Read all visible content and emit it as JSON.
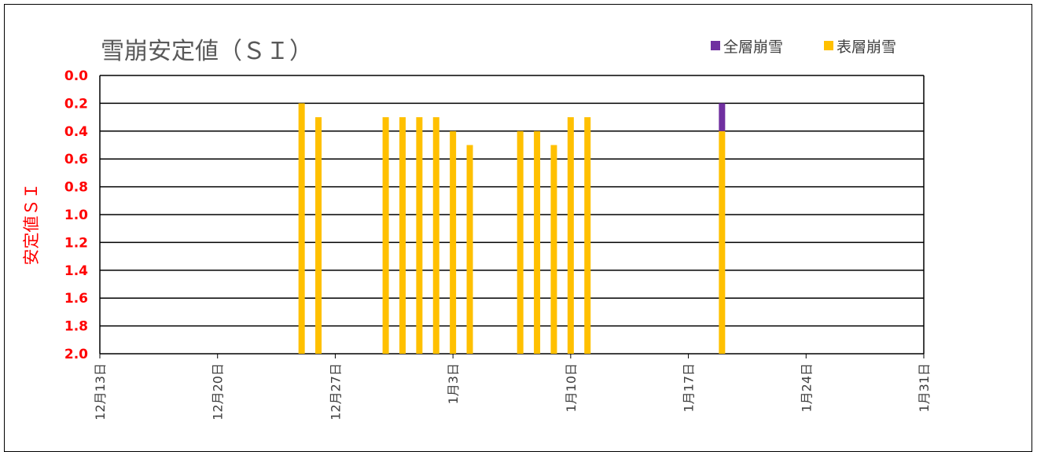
{
  "chart_data": {
    "type": "bar",
    "title": "雪崩安定値（ＳＩ）",
    "ylabel": "安定値ＳＩ",
    "xlabel": "",
    "ylim": [
      0.0,
      2.0
    ],
    "y_inverted": true,
    "y_ticks": [
      "0.0",
      "0.2",
      "0.4",
      "0.6",
      "0.8",
      "1.0",
      "1.2",
      "1.4",
      "1.6",
      "1.8",
      "2.0"
    ],
    "x_ticks": [
      "12月13日",
      "12月20日",
      "12月27日",
      "1月3日",
      "1月10日",
      "1月17日",
      "1月24日",
      "1月31日"
    ],
    "grid": true,
    "legend_position": "top-right",
    "series": [
      {
        "name": "全層崩雪",
        "color": "#7030a0",
        "points": [
          {
            "date": "1月19日",
            "value": 0.2
          }
        ]
      },
      {
        "name": "表層崩雪",
        "color": "#ffc000",
        "points": [
          {
            "date": "12月25日",
            "value": 0.2
          },
          {
            "date": "12月26日",
            "value": 0.3
          },
          {
            "date": "12月30日",
            "value": 0.3
          },
          {
            "date": "12月31日",
            "value": 0.3
          },
          {
            "date": "1月1日",
            "value": 0.3
          },
          {
            "date": "1月2日",
            "value": 0.3
          },
          {
            "date": "1月3日",
            "value": 0.4
          },
          {
            "date": "1月4日",
            "value": 0.5
          },
          {
            "date": "1月7日",
            "value": 0.4
          },
          {
            "date": "1月8日",
            "value": 0.4
          },
          {
            "date": "1月9日",
            "value": 0.5
          },
          {
            "date": "1月10日",
            "value": 0.3
          },
          {
            "date": "1月11日",
            "value": 0.3
          },
          {
            "date": "1月19日",
            "value": 0.4
          }
        ]
      }
    ]
  }
}
